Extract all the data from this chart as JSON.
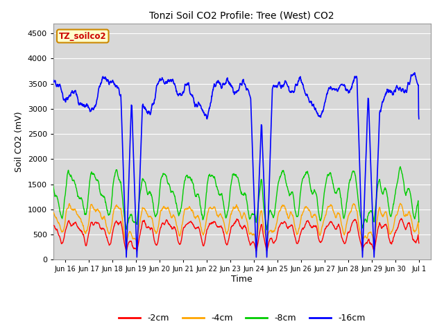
{
  "title": "Tonzi Soil CO2 Profile: Tree (West) CO2",
  "ylabel": "Soil CO2 (mV)",
  "xlabel": "Time",
  "legend_label": "TZ_soilco2",
  "ylim": [
    0,
    4700
  ],
  "yticks": [
    0,
    500,
    1000,
    1500,
    2000,
    2500,
    3000,
    3500,
    4000,
    4500
  ],
  "colors": {
    "-2cm": "#ff0000",
    "-4cm": "#ffa500",
    "-8cm": "#00cc00",
    "-16cm": "#0000ff"
  },
  "bg_color": "#d8d8d8",
  "n_points": 1500
}
